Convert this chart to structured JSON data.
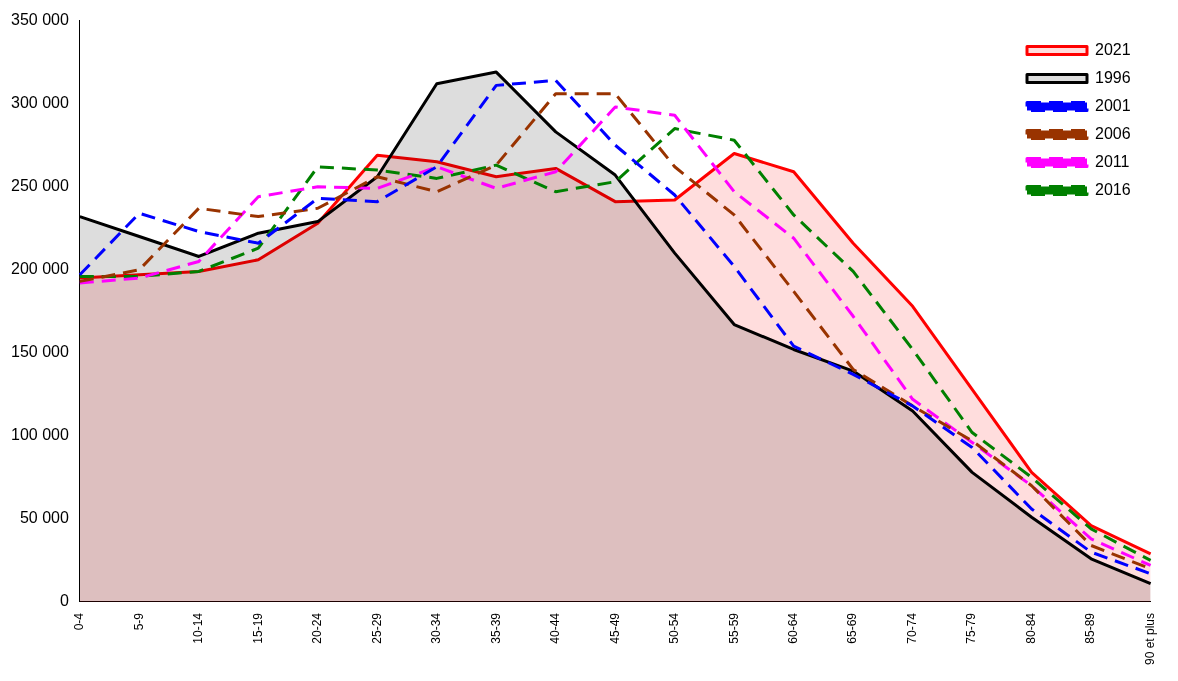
{
  "chart_data": {
    "type": "line",
    "categories": [
      "0-4",
      "5-9",
      "10-14",
      "15-19",
      "20-24",
      "25-29",
      "30-34",
      "35-39",
      "40-44",
      "45-49",
      "50-54",
      "55-59",
      "60-64",
      "65-69",
      "70-74",
      "75-79",
      "80-84",
      "85-89",
      "90 et plus"
    ],
    "series": [
      {
        "name": "2021",
        "type": "area",
        "color": "#ff0000",
        "line_style": "solid",
        "values": [
          195000,
          197000,
          199000,
          206000,
          228000,
          269000,
          265000,
          256000,
          261000,
          241000,
          242000,
          270000,
          259000,
          216000,
          178000,
          128000,
          78000,
          46000,
          29000
        ]
      },
      {
        "name": "1996",
        "type": "area",
        "color": "#000000",
        "line_style": "solid",
        "values": [
          232000,
          220000,
          208000,
          222000,
          229000,
          256000,
          312000,
          319000,
          283000,
          257000,
          210000,
          167000,
          152000,
          139000,
          115000,
          78000,
          51000,
          26000,
          11000
        ]
      },
      {
        "name": "2001",
        "type": "line",
        "color": "#0000ff",
        "line_style": "dashed",
        "values": [
          197000,
          234000,
          223000,
          216000,
          243000,
          241000,
          262000,
          311000,
          314000,
          275000,
          245000,
          202000,
          154000,
          137000,
          118000,
          93000,
          56000,
          30000,
          17000
        ]
      },
      {
        "name": "2006",
        "type": "line",
        "color": "#993300",
        "line_style": "dashed",
        "values": [
          193000,
          200000,
          237000,
          232000,
          237000,
          256000,
          247000,
          263000,
          306000,
          306000,
          262000,
          233000,
          187000,
          140000,
          118000,
          97000,
          70000,
          34000,
          20000
        ]
      },
      {
        "name": "2011",
        "type": "line",
        "color": "#ff00ff",
        "line_style": "dashed",
        "values": [
          192000,
          195000,
          205000,
          244000,
          250000,
          249000,
          262000,
          249000,
          259000,
          298000,
          293000,
          247000,
          219000,
          172000,
          122000,
          96000,
          70000,
          38000,
          22000
        ]
      },
      {
        "name": "2016",
        "type": "line",
        "color": "#008000",
        "line_style": "dashed",
        "values": [
          196000,
          196000,
          199000,
          213000,
          262000,
          260000,
          255000,
          263000,
          247000,
          253000,
          285000,
          278000,
          233000,
          199000,
          152000,
          102000,
          75000,
          44000,
          25000
        ]
      }
    ],
    "ylim": [
      0,
      350000
    ],
    "yticks": [
      {
        "value": 0,
        "label": "0"
      },
      {
        "value": 50000,
        "label": "50 000"
      },
      {
        "value": 100000,
        "label": "100 000"
      },
      {
        "value": 150000,
        "label": "150 000"
      },
      {
        "value": 200000,
        "label": "200 000"
      },
      {
        "value": 250000,
        "label": "250 000"
      },
      {
        "value": 300000,
        "label": "300 000"
      },
      {
        "value": 350000,
        "label": "350 000"
      }
    ],
    "grid": false,
    "legend": "top right",
    "marker": "none"
  }
}
